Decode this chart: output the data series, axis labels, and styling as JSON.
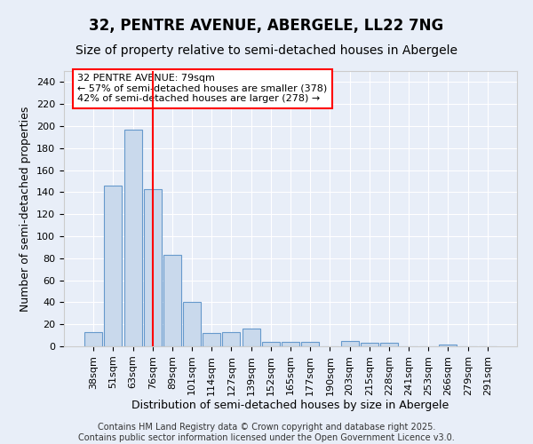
{
  "title": "32, PENTRE AVENUE, ABERGELE, LL22 7NG",
  "subtitle": "Size of property relative to semi-detached houses in Abergele",
  "xlabel": "Distribution of semi-detached houses by size in Abergele",
  "ylabel": "Number of semi-detached properties",
  "categories": [
    "38sqm",
    "51sqm",
    "63sqm",
    "76sqm",
    "89sqm",
    "101sqm",
    "114sqm",
    "127sqm",
    "139sqm",
    "152sqm",
    "165sqm",
    "177sqm",
    "190sqm",
    "203sqm",
    "215sqm",
    "228sqm",
    "241sqm",
    "253sqm",
    "266sqm",
    "279sqm",
    "291sqm"
  ],
  "values": [
    13,
    146,
    197,
    143,
    83,
    40,
    12,
    13,
    16,
    4,
    4,
    4,
    0,
    5,
    3,
    3,
    0,
    0,
    2,
    0,
    0
  ],
  "bar_color": "#c9d9ec",
  "bar_edge_color": "#6699cc",
  "red_line_index": 3,
  "annotation_text": "32 PENTRE AVENUE: 79sqm\n← 57% of semi-detached houses are smaller (378)\n42% of semi-detached houses are larger (278) →",
  "background_color": "#e8eef8",
  "plot_bg_color": "#e8eef8",
  "ylim": [
    0,
    250
  ],
  "yticks": [
    0,
    20,
    40,
    60,
    80,
    100,
    120,
    140,
    160,
    180,
    200,
    220,
    240
  ],
  "footer_line1": "Contains HM Land Registry data © Crown copyright and database right 2025.",
  "footer_line2": "Contains public sector information licensed under the Open Government Licence v3.0.",
  "title_fontsize": 12,
  "subtitle_fontsize": 10,
  "xlabel_fontsize": 9,
  "ylabel_fontsize": 9,
  "tick_fontsize": 8,
  "annotation_fontsize": 8,
  "footer_fontsize": 7
}
